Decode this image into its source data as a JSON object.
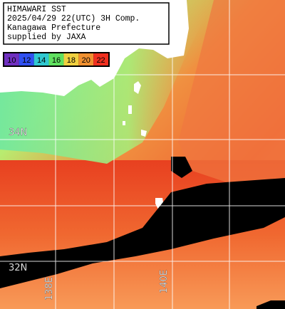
{
  "header": {
    "lines": [
      "HIMAWARI SST",
      "2025/04/29 22(UTC) 3H Comp.",
      "Kanagawa Prefecture",
      "supplied by JAXA"
    ]
  },
  "colorbar": {
    "labels": [
      "10",
      "12",
      "14",
      "16",
      "18",
      "20",
      "22"
    ]
  },
  "grid": {
    "latitudes": [
      "34N",
      "32N"
    ],
    "longitudes": [
      "138E",
      "140E"
    ]
  }
}
